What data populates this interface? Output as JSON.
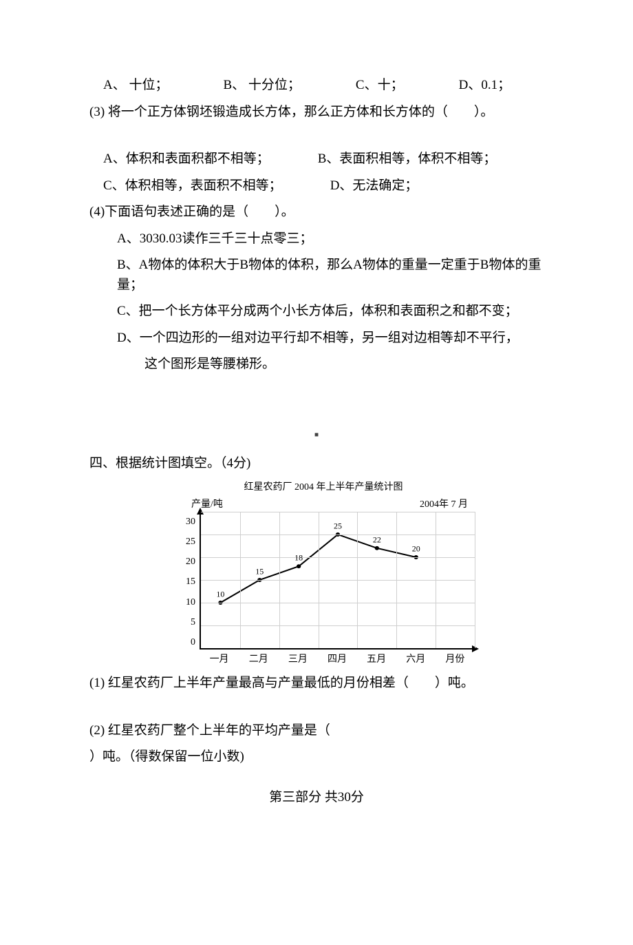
{
  "q2_options": {
    "a": "A、 十位；",
    "b": "B、 十分位；",
    "c": "C、十；",
    "d": "D、0.1；"
  },
  "q3": {
    "stem": "(3) 将一个正方体钢坯锻造成长方体，那么正方体和长方体的（　　）。",
    "a": "A、体积和表面积都不相等；",
    "b": "B、表面积相等，体积不相等；",
    "c": "C、体积相等，表面积不相等；",
    "d": "D、无法确定；"
  },
  "q4": {
    "stem": "(4)下面语句表述正确的是（　　）。",
    "a": "A、3030.03读作三千三十点零三；",
    "b": "B、A物体的体积大于B物体的体积，那么A物体的重量一定重于B物体的重量；",
    "c": "C、把一个长方体平分成两个小长方体后，体积和表面积之和都不变；",
    "d1": "D、一个四边形的一组对边平行却不相等，另一组对边相等却不平行，",
    "d2": "这个图形是等腰梯形。"
  },
  "section4": "四、根据统计图填空。（4分)",
  "chart": {
    "type": "line",
    "title": "红星农药厂 2004 年上半年产量统计图",
    "y_label": "产量/吨",
    "date_label": "2004年 7 月",
    "x_label": "月份",
    "categories": [
      "一月",
      "二月",
      "三月",
      "四月",
      "五月",
      "六月"
    ],
    "values": [
      10,
      15,
      18,
      25,
      22,
      20
    ],
    "ylim": [
      0,
      30
    ],
    "ytick_step": 5,
    "y_ticks": [
      "0",
      "5",
      "10",
      "15",
      "20",
      "25",
      "30"
    ],
    "line_color": "#000000",
    "grid_color": "#cfcfcf",
    "background_color": "#ffffff",
    "label_fontsize": 12,
    "title_fontsize": 14
  },
  "chart_q1": "(1) 红星农药厂上半年产量最高与产量最低的月份相差（　　）吨。",
  "chart_q2a": "(2) 红星农药厂整个上半年的平均产量是（",
  "chart_q2b": "）吨。（得数保留一位小数)",
  "part3": "第三部分 共30分"
}
